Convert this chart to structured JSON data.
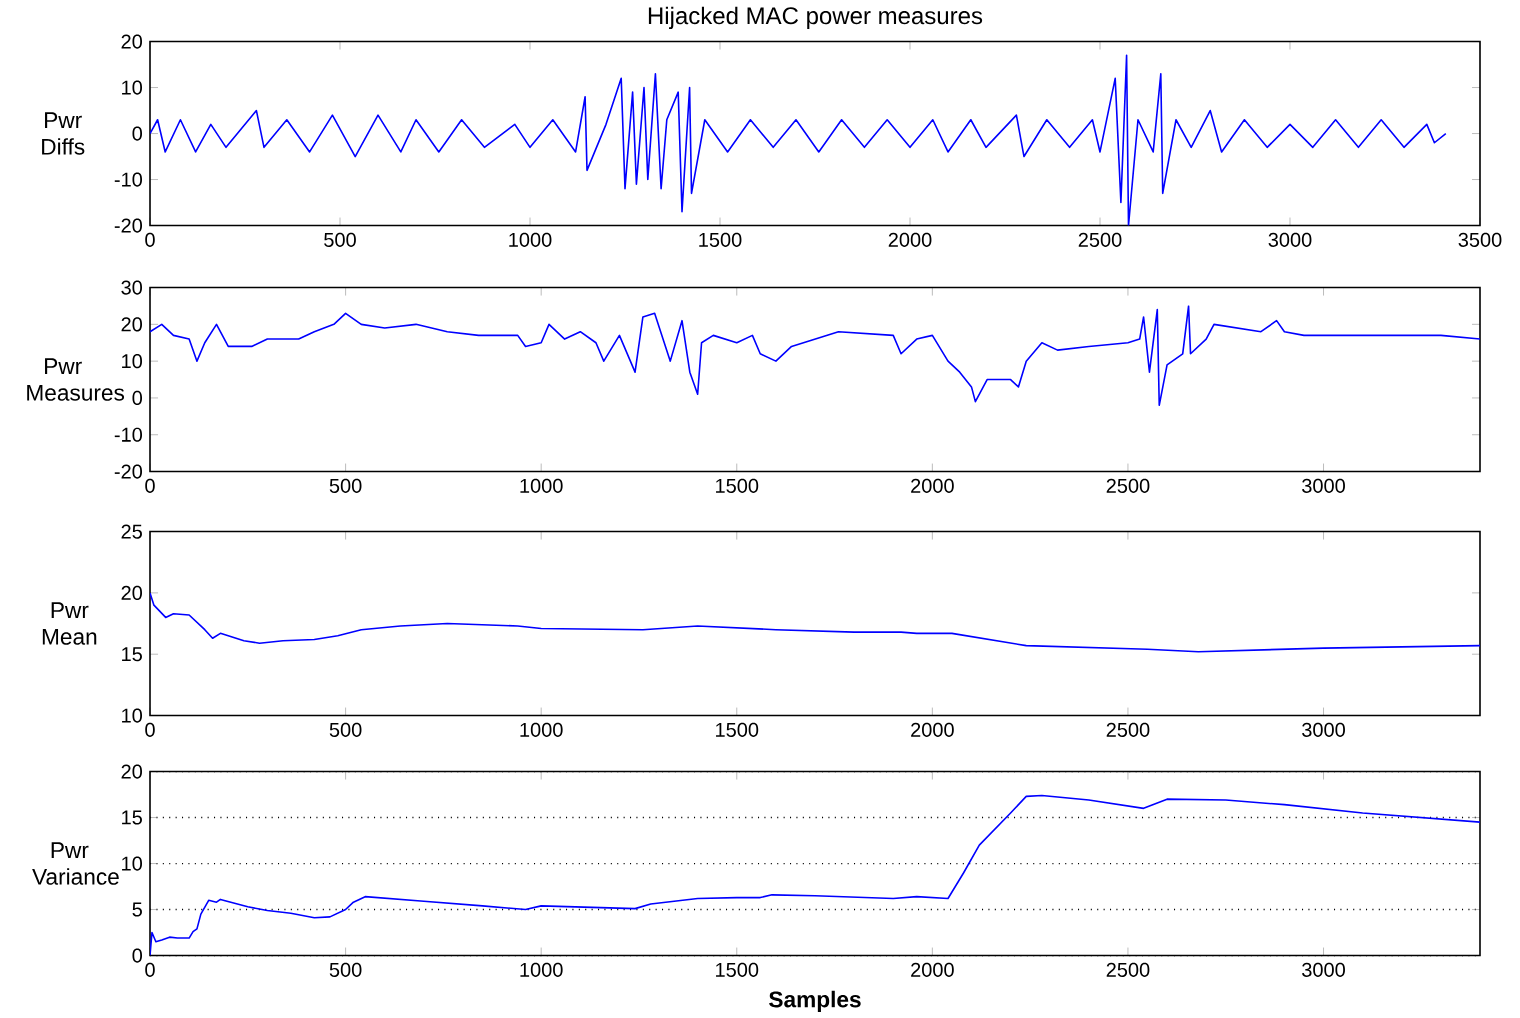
{
  "chart_data": [
    {
      "type": "line",
      "title": "Hijacked MAC power measures",
      "ylabel": "Pwr Diffs",
      "color": "#0000ff",
      "xlim": [
        0,
        3500
      ],
      "xticks": [
        0,
        500,
        1000,
        1500,
        2000,
        2500,
        3000,
        3500
      ],
      "ylim": [
        -20,
        20
      ],
      "yticks": [
        -20,
        -10,
        0,
        10,
        20
      ],
      "x": [
        0,
        20,
        40,
        80,
        120,
        160,
        200,
        280,
        300,
        360,
        420,
        480,
        540,
        600,
        660,
        700,
        760,
        820,
        880,
        960,
        1000,
        1060,
        1120,
        1145,
        1150,
        1200,
        1240,
        1250,
        1270,
        1280,
        1300,
        1310,
        1330,
        1345,
        1360,
        1390,
        1400,
        1420,
        1425,
        1460,
        1520,
        1580,
        1640,
        1700,
        1760,
        1820,
        1880,
        1940,
        2000,
        2060,
        2100,
        2160,
        2200,
        2280,
        2300,
        2360,
        2420,
        2480,
        2500,
        2540,
        2555,
        2570,
        2575,
        2600,
        2640,
        2660,
        2665,
        2700,
        2740,
        2790,
        2820,
        2880,
        2940,
        3000,
        3060,
        3120,
        3180,
        3240,
        3300,
        3360,
        3380,
        3410
      ],
      "values": [
        0,
        3,
        -4,
        3,
        -4,
        2,
        -3,
        5,
        -3,
        3,
        -4,
        4,
        -5,
        4,
        -4,
        3,
        -4,
        3,
        -3,
        2,
        -3,
        3,
        -4,
        8,
        -8,
        2,
        12,
        -12,
        9,
        -11,
        10,
        -10,
        13,
        -12,
        3,
        9,
        -17,
        10,
        -13,
        3,
        -4,
        3,
        -3,
        3,
        -4,
        3,
        -3,
        3,
        -3,
        3,
        -4,
        3,
        -3,
        4,
        -5,
        3,
        -3,
        3,
        -4,
        12,
        -15,
        17,
        -20,
        3,
        -4,
        13,
        -13,
        3,
        -3,
        5,
        -4,
        3,
        -3,
        2,
        -3,
        3,
        -3,
        3,
        -3,
        2,
        -2,
        0
      ]
    },
    {
      "type": "line",
      "ylabel": "Pwr Measures",
      "color": "#0000ff",
      "xlim": [
        0,
        3400
      ],
      "xticks": [
        0,
        500,
        1000,
        1500,
        2000,
        2500,
        3000
      ],
      "ylim": [
        -20,
        30
      ],
      "yticks": [
        -20,
        -10,
        0,
        10,
        20,
        30
      ],
      "x": [
        0,
        30,
        60,
        100,
        120,
        140,
        170,
        200,
        260,
        300,
        380,
        420,
        470,
        500,
        540,
        600,
        680,
        760,
        840,
        940,
        960,
        1000,
        1020,
        1060,
        1100,
        1140,
        1160,
        1200,
        1240,
        1260,
        1290,
        1330,
        1360,
        1380,
        1400,
        1410,
        1440,
        1500,
        1540,
        1560,
        1600,
        1640,
        1700,
        1760,
        1900,
        1920,
        1960,
        2000,
        2040,
        2070,
        2100,
        2110,
        2140,
        2200,
        2220,
        2240,
        2280,
        2320,
        2400,
        2500,
        2530,
        2540,
        2555,
        2575,
        2580,
        2600,
        2640,
        2655,
        2660,
        2700,
        2720,
        2780,
        2840,
        2880,
        2900,
        2950,
        3000,
        3100,
        3200,
        3300,
        3400
      ],
      "values": [
        18,
        20,
        17,
        16,
        10,
        15,
        20,
        14,
        14,
        16,
        16,
        18,
        20,
        23,
        20,
        19,
        20,
        18,
        17,
        17,
        14,
        15,
        20,
        16,
        18,
        15,
        10,
        17,
        7,
        22,
        23,
        10,
        21,
        7,
        1,
        15,
        17,
        15,
        17,
        12,
        10,
        14,
        16,
        18,
        17,
        12,
        16,
        17,
        10,
        7,
        3,
        -1,
        5,
        5,
        3,
        10,
        15,
        13,
        14,
        15,
        16,
        22,
        7,
        24,
        -2,
        9,
        12,
        25,
        12,
        16,
        20,
        19,
        18,
        21,
        18,
        17,
        17,
        17,
        17,
        17,
        16
      ]
    },
    {
      "type": "line",
      "ylabel": "Pwr Mean",
      "color": "#0000ff",
      "xlim": [
        0,
        3400
      ],
      "xticks": [
        0,
        500,
        1000,
        1500,
        2000,
        2500,
        3000
      ],
      "ylim": [
        10,
        25
      ],
      "yticks": [
        10,
        15,
        20,
        25
      ],
      "x": [
        0,
        10,
        40,
        60,
        100,
        140,
        160,
        180,
        240,
        280,
        340,
        420,
        480,
        540,
        640,
        760,
        940,
        1000,
        1260,
        1400,
        1600,
        1800,
        1920,
        1960,
        2050,
        2240,
        2550,
        2680,
        3000,
        3400
      ],
      "values": [
        20,
        19,
        18,
        18.3,
        18.2,
        17,
        16.3,
        16.7,
        16.1,
        15.9,
        16.1,
        16.2,
        16.5,
        17,
        17.3,
        17.5,
        17.3,
        17.1,
        17,
        17.3,
        17,
        16.8,
        16.8,
        16.7,
        16.7,
        15.7,
        15.4,
        15.2,
        15.5,
        15.7
      ]
    },
    {
      "type": "line",
      "ylabel": "Pwr Variance",
      "xlabel": "Samples",
      "grid": "y",
      "color": "#0000ff",
      "xlim": [
        0,
        3400
      ],
      "xticks": [
        0,
        500,
        1000,
        1500,
        2000,
        2500,
        3000
      ],
      "ylim": [
        0,
        20
      ],
      "yticks": [
        0,
        5,
        10,
        15,
        20
      ],
      "x": [
        0,
        5,
        15,
        30,
        50,
        70,
        100,
        110,
        120,
        130,
        150,
        170,
        180,
        250,
        300,
        360,
        420,
        460,
        500,
        520,
        550,
        700,
        850,
        960,
        1000,
        1240,
        1280,
        1400,
        1500,
        1560,
        1590,
        1700,
        1900,
        1960,
        2040,
        2080,
        2120,
        2200,
        2240,
        2280,
        2400,
        2540,
        2600,
        2750,
        2900,
        3100,
        3400
      ],
      "values": [
        0,
        2.5,
        1.5,
        1.7,
        2,
        1.9,
        1.9,
        2.6,
        2.9,
        4.5,
        6,
        5.8,
        6.1,
        5.3,
        4.9,
        4.6,
        4.1,
        4.2,
        5,
        5.8,
        6.4,
        5.9,
        5.4,
        5,
        5.4,
        5.1,
        5.6,
        6.2,
        6.3,
        6.3,
        6.6,
        6.5,
        6.2,
        6.4,
        6.2,
        9,
        12,
        15.5,
        17.3,
        17.4,
        16.9,
        16,
        17,
        16.9,
        16.4,
        15.5,
        14.5
      ]
    }
  ]
}
